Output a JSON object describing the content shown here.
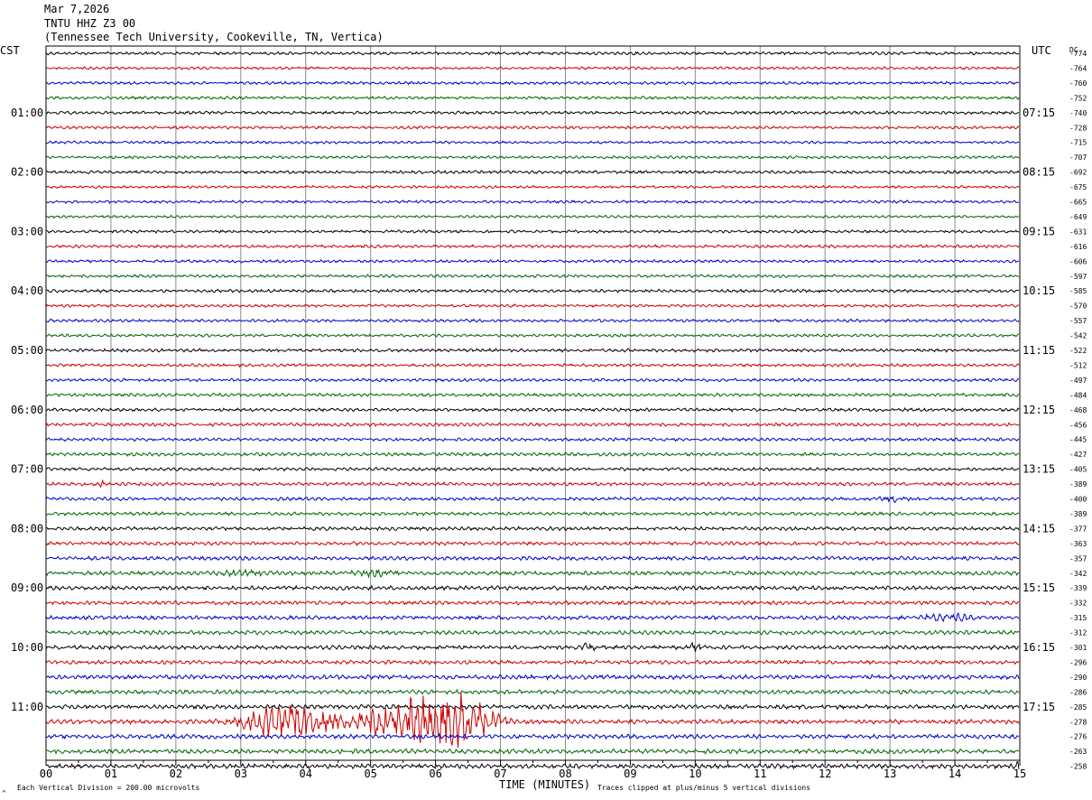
{
  "header": {
    "date": "Mar 7,2026",
    "station": "TNTU HHZ Z3 00",
    "location": "(Tennessee Tech University, Cookeville, TN, Vertica)"
  },
  "left_timezone": "CST",
  "right_timezone": "UTC",
  "dc_label": "DC",
  "footer": {
    "scale_note": "Each Vertical Division =  200.00 microvolts",
    "xlabel": "TIME (MINUTES)",
    "clip_note": "Traces clipped at plus/minus 5 vertical divisions",
    "corner_mark": "^"
  },
  "colors": {
    "trace_cycle": [
      "#000000",
      "#cc0000",
      "#0000cc",
      "#006600"
    ],
    "grid": "#8c8c8c",
    "frame": "#000000"
  },
  "chart_data": {
    "type": "line",
    "title": "TNTU HHZ Z3 00",
    "xlabel": "TIME (MINUTES)",
    "xlim": [
      0,
      15
    ],
    "x_ticks": [
      "00",
      "01",
      "02",
      "03",
      "04",
      "05",
      "06",
      "07",
      "08",
      "09",
      "10",
      "11",
      "12",
      "13",
      "14",
      "15"
    ],
    "minutes_per_line": 15,
    "left_hour_labels": [
      "01:00",
      "02:00",
      "03:00",
      "04:00",
      "05:00",
      "06:00",
      "07:00",
      "08:00",
      "09:00",
      "10:00",
      "11:00"
    ],
    "right_hour_labels": [
      "07:15",
      "08:15",
      "09:15",
      "10:15",
      "11:15",
      "12:15",
      "13:15",
      "14:15",
      "15:15",
      "16:15",
      "17:15"
    ],
    "dc_offsets": [
      -774,
      -764,
      -760,
      -752,
      -740,
      -728,
      -715,
      -707,
      -692,
      -675,
      -665,
      -649,
      -631,
      -616,
      -606,
      -597,
      -585,
      -570,
      -557,
      -542,
      -522,
      -512,
      -497,
      -484,
      -468,
      -456,
      -445,
      -427,
      -405,
      -389,
      -400,
      -389,
      -377,
      -363,
      -357,
      -342,
      -339,
      -332,
      -315,
      -312,
      -301,
      -296,
      -290,
      -286,
      -285,
      -278,
      -276,
      -263,
      -258
    ],
    "noise_amplitude": [
      1.6,
      1.4,
      1.5,
      1.6,
      1.6,
      1.5,
      1.4,
      1.5,
      1.6,
      1.4,
      1.5,
      1.4,
      1.5,
      1.6,
      1.5,
      1.6,
      1.6,
      1.5,
      1.6,
      1.5,
      1.7,
      1.6,
      1.6,
      1.7,
      1.7,
      1.8,
      1.7,
      1.8,
      1.7,
      1.8,
      1.8,
      1.8,
      1.9,
      1.9,
      2.0,
      2.1,
      2.2,
      2.0,
      2.1,
      2.2,
      2.1,
      2.1,
      2.3,
      2.2,
      2.3,
      2.3,
      2.3,
      2.4,
      2.4
    ],
    "events": [
      {
        "line": 29,
        "minute": 0.85,
        "amplitude": 6,
        "duration": 0.05
      },
      {
        "line": 30,
        "minute": 13.0,
        "amplitude": 3,
        "duration": 0.2
      },
      {
        "line": 35,
        "minute": 3.0,
        "amplitude": 2.5,
        "duration": 0.3
      },
      {
        "line": 35,
        "minute": 5.0,
        "amplitude": 2.5,
        "duration": 0.3
      },
      {
        "line": 38,
        "minute": 13.9,
        "amplitude": 3,
        "duration": 0.4
      },
      {
        "line": 40,
        "minute": 8.35,
        "amplitude": 5,
        "duration": 0.08
      },
      {
        "line": 40,
        "minute": 10.0,
        "amplitude": 4,
        "duration": 0.1
      },
      {
        "line": 45,
        "minute": 3.6,
        "amplitude": 18,
        "duration": 0.5
      },
      {
        "line": 45,
        "minute": 4.2,
        "amplitude": 7,
        "duration": 0.3
      },
      {
        "line": 45,
        "minute": 5.5,
        "amplitude": 20,
        "duration": 0.7
      },
      {
        "line": 45,
        "minute": 6.35,
        "amplitude": 26,
        "duration": 0.5
      },
      {
        "line": 48,
        "minute": 15.0,
        "amplitude": 5,
        "duration": 0.05
      }
    ]
  }
}
